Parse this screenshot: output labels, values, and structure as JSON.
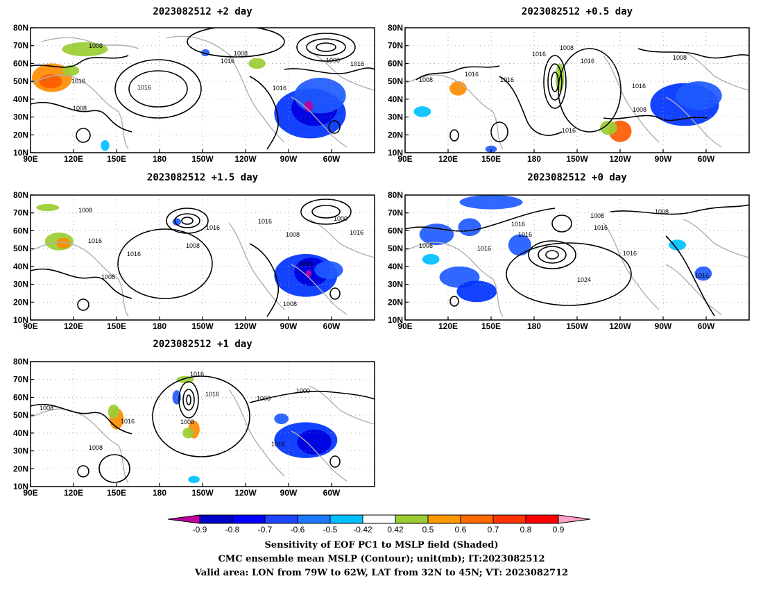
{
  "panels": [
    {
      "title": "2023082512 +2 day",
      "contour_labels": [
        "1008",
        "1016",
        "1016",
        "1016",
        "1008",
        "1016",
        "1008",
        "1016",
        "1000",
        "1016"
      ],
      "shading": [
        {
          "lon": 105,
          "lat": 52,
          "rx": 14,
          "ry": 8,
          "color": "#ff8c00"
        },
        {
          "lon": 104,
          "lat": 50,
          "rx": 8,
          "ry": 4,
          "color": "#ff5a00"
        },
        {
          "lon": 118,
          "lat": 56,
          "rx": 6,
          "ry": 3,
          "color": "#9acd32"
        },
        {
          "lon": 128,
          "lat": 68,
          "rx": 16,
          "ry": 4,
          "color": "#9acd32"
        },
        {
          "lon": -148,
          "lat": 66,
          "rx": 3,
          "ry": 2,
          "color": "#1e5aff"
        },
        {
          "lon": -112,
          "lat": 60,
          "rx": 6,
          "ry": 3,
          "color": "#9acd32"
        },
        {
          "lon": -75,
          "lat": 32,
          "rx": 25,
          "ry": 14,
          "color": "#0033ff"
        },
        {
          "lon": -72,
          "lat": 35,
          "rx": 16,
          "ry": 10,
          "color": "#0000e0"
        },
        {
          "lon": -68,
          "lat": 42,
          "rx": 18,
          "ry": 10,
          "color": "#1e5aff"
        },
        {
          "lon": -76,
          "lat": 36,
          "rx": 3,
          "ry": 3,
          "color": "#c000a0"
        },
        {
          "lon": 142,
          "lat": 14,
          "rx": 3,
          "ry": 3,
          "color": "#00c0ff"
        }
      ]
    },
    {
      "title": "2023082512 +0.5 day",
      "contour_labels": [
        "1008",
        "1016",
        "1016",
        "1008",
        "1016",
        "1016",
        "1008",
        "1016",
        "1008",
        "1016"
      ],
      "shading": [
        {
          "lon": 127,
          "lat": 46,
          "rx": 6,
          "ry": 4,
          "color": "#ff8c00"
        },
        {
          "lon": -162,
          "lat": 52,
          "rx": 3,
          "ry": 8,
          "color": "#9acd32"
        },
        {
          "lon": -120,
          "lat": 22,
          "rx": 8,
          "ry": 6,
          "color": "#ff5a00"
        },
        {
          "lon": -128,
          "lat": 24,
          "rx": 6,
          "ry": 4,
          "color": "#9acd32"
        },
        {
          "lon": -75,
          "lat": 37,
          "rx": 24,
          "ry": 12,
          "color": "#0033ff"
        },
        {
          "lon": -65,
          "lat": 42,
          "rx": 16,
          "ry": 8,
          "color": "#1e5aff"
        },
        {
          "lon": 102,
          "lat": 33,
          "rx": 6,
          "ry": 3,
          "color": "#00c0ff"
        },
        {
          "lon": 150,
          "lat": 12,
          "rx": 4,
          "ry": 2,
          "color": "#1e5aff"
        }
      ]
    },
    {
      "title": "2023082512 +1.5 day",
      "contour_labels": [
        "1008",
        "1016",
        "1016",
        "1016",
        "1008",
        "1016",
        "1008",
        "1000",
        "1016",
        "1016",
        "1008",
        "1008"
      ],
      "shading": [
        {
          "lon": 110,
          "lat": 54,
          "rx": 10,
          "ry": 5,
          "color": "#9acd32"
        },
        {
          "lon": 113,
          "lat": 53,
          "rx": 5,
          "ry": 3,
          "color": "#ff8c00"
        },
        {
          "lon": 102,
          "lat": 73,
          "rx": 8,
          "ry": 2,
          "color": "#9acd32"
        },
        {
          "lon": -168,
          "lat": 65,
          "rx": 3,
          "ry": 2,
          "color": "#1e5aff"
        },
        {
          "lon": -78,
          "lat": 35,
          "rx": 22,
          "ry": 12,
          "color": "#0033ff"
        },
        {
          "lon": -74,
          "lat": 37,
          "rx": 12,
          "ry": 8,
          "color": "#0000e0"
        },
        {
          "lon": -62,
          "lat": 38,
          "rx": 10,
          "ry": 5,
          "color": "#1e5aff"
        },
        {
          "lon": -76,
          "lat": 36,
          "rx": 2,
          "ry": 2,
          "color": "#c000a0"
        }
      ]
    },
    {
      "title": "2023082512 +0 day",
      "contour_labels": [
        "1008",
        "1008",
        "1016",
        "1016",
        "1016",
        "1008",
        "1016",
        "1024",
        "1016",
        "1016"
      ],
      "shading": [
        {
          "lon": 150,
          "lat": 76,
          "rx": 22,
          "ry": 4,
          "color": "#1e5aff"
        },
        {
          "lon": 112,
          "lat": 58,
          "rx": 12,
          "ry": 6,
          "color": "#1e5aff"
        },
        {
          "lon": 135,
          "lat": 62,
          "rx": 8,
          "ry": 5,
          "color": "#1e5aff"
        },
        {
          "lon": 128,
          "lat": 34,
          "rx": 14,
          "ry": 6,
          "color": "#1e5aff"
        },
        {
          "lon": 140,
          "lat": 26,
          "rx": 14,
          "ry": 6,
          "color": "#0033ff"
        },
        {
          "lon": 170,
          "lat": 52,
          "rx": 8,
          "ry": 6,
          "color": "#1e5aff"
        },
        {
          "lon": -80,
          "lat": 52,
          "rx": 6,
          "ry": 3,
          "color": "#00c0ff"
        },
        {
          "lon": -62,
          "lat": 36,
          "rx": 6,
          "ry": 4,
          "color": "#1e5aff"
        },
        {
          "lon": 108,
          "lat": 44,
          "rx": 6,
          "ry": 3,
          "color": "#00c0ff"
        }
      ]
    },
    {
      "title": "2023082512 +1 day",
      "contour_labels": [
        "1008",
        "1016",
        "1008",
        "1016",
        "1016",
        "1008",
        "1008",
        "1000",
        "1016",
        "1016"
      ],
      "shading": [
        {
          "lon": 150,
          "lat": 48,
          "rx": 5,
          "ry": 6,
          "color": "#ff8c00"
        },
        {
          "lon": 148,
          "lat": 52,
          "rx": 4,
          "ry": 4,
          "color": "#9acd32"
        },
        {
          "lon": -168,
          "lat": 60,
          "rx": 3,
          "ry": 4,
          "color": "#1e5aff"
        },
        {
          "lon": -156,
          "lat": 42,
          "rx": 4,
          "ry": 5,
          "color": "#ff8c00"
        },
        {
          "lon": -160,
          "lat": 40,
          "rx": 4,
          "ry": 3,
          "color": "#9acd32"
        },
        {
          "lon": -162,
          "lat": 70,
          "rx": 6,
          "ry": 2,
          "color": "#9acd32"
        },
        {
          "lon": -78,
          "lat": 36,
          "rx": 22,
          "ry": 10,
          "color": "#0033ff"
        },
        {
          "lon": -72,
          "lat": 35,
          "rx": 12,
          "ry": 7,
          "color": "#0000e0"
        },
        {
          "lon": -95,
          "lat": 48,
          "rx": 5,
          "ry": 3,
          "color": "#1e5aff"
        },
        {
          "lon": -156,
          "lat": 14,
          "rx": 4,
          "ry": 2,
          "color": "#00c0ff"
        }
      ]
    }
  ],
  "lat_ticks": [
    "10N",
    "20N",
    "30N",
    "40N",
    "50N",
    "60N",
    "70N",
    "80N"
  ],
  "lon_ticks": [
    "90E",
    "120E",
    "150E",
    "180",
    "150W",
    "120W",
    "90W",
    "60W"
  ],
  "colorbar": {
    "colors": [
      "#0000c8",
      "#0000ff",
      "#1e46ff",
      "#1e78ff",
      "#00c0ff",
      "#ffffff",
      "#9acd32",
      "#ff9900",
      "#ff6a00",
      "#ff3300",
      "#ff0000"
    ],
    "low_extend_color": "#c000a0",
    "high_extend_color": "#ffa0c8",
    "tick_labels": [
      "-0.9",
      "-0.8",
      "-0.7",
      "-0.6",
      "-0.5",
      "-0.42",
      "0.42",
      "0.5",
      "0.6",
      "0.7",
      "0.8",
      "0.9"
    ]
  },
  "footer": {
    "line1": "Sensitivity of EOF PC1 to MSLP field (Shaded)",
    "line2": "CMC ensemble mean MSLP (Contour); unit(mb); IT:2023082512",
    "line3": "Valid area: LON from 79W to 62W, LAT from 32N to 45N; VT: 2023082712"
  }
}
